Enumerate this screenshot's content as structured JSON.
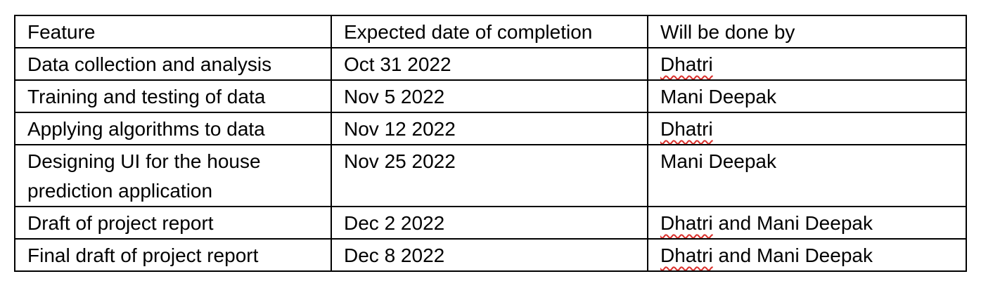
{
  "table": {
    "headers": [
      "Feature",
      "Expected date of completion",
      "Will be done by"
    ],
    "rows": [
      {
        "feature": "Data collection and analysis",
        "date": "Oct 31 2022",
        "owner_flagged": "Dhatri",
        "owner_rest": ""
      },
      {
        "feature": "Training and testing of data",
        "date": "Nov 5 2022",
        "owner_flagged": "",
        "owner_rest": "Mani Deepak"
      },
      {
        "feature": "Applying algorithms to data",
        "date": "Nov 12 2022",
        "owner_flagged": "Dhatri",
        "owner_rest": ""
      },
      {
        "feature": "Designing UI for the house prediction application",
        "date": "Nov 25 2022",
        "owner_flagged": "",
        "owner_rest": "Mani Deepak"
      },
      {
        "feature": "Draft of project report",
        "date": "Dec 2 2022",
        "owner_flagged": "Dhatri",
        "owner_rest": " and Mani Deepak"
      },
      {
        "feature": "Final draft of project report",
        "date": "Dec 8 2022",
        "owner_flagged": "Dhatri",
        "owner_rest": " and Mani Deepak"
      }
    ]
  },
  "colors": {
    "border": "#000000",
    "text": "#000000",
    "spellcheck_underline": "#d9302c"
  }
}
